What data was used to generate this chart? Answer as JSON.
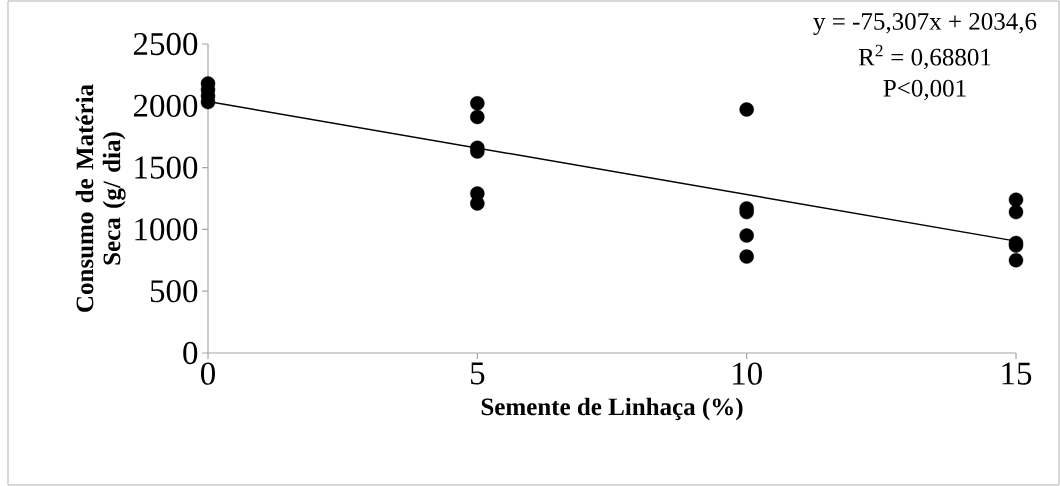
{
  "chart_data": {
    "type": "scatter",
    "xlabel": "Semente de Linhaça (%)",
    "ylabel": "Consumo de Matéria Seca (g/ dia)",
    "xlim": [
      0,
      15
    ],
    "xticks": [
      0,
      5,
      10,
      15
    ],
    "ylim": [
      0,
      2500
    ],
    "yticks": [
      0,
      500,
      1000,
      1500,
      2000,
      2500
    ],
    "grid": false,
    "series": [
      {
        "color": "#000000",
        "marker": "circle",
        "x": [
          0,
          0,
          0,
          0,
          5,
          5,
          5,
          5,
          5,
          5,
          10,
          10,
          10,
          10,
          10,
          15,
          15,
          15,
          15,
          15
        ],
        "values": [
          2180,
          2130,
          2080,
          2030,
          2020,
          1910,
          1660,
          1630,
          1290,
          1210,
          1970,
          1170,
          1140,
          950,
          780,
          1240,
          1140,
          890,
          870,
          750
        ]
      },
      {
        "type": "line",
        "color": "#000000",
        "marker": "none",
        "x": [
          0,
          15
        ],
        "values": [
          2035,
          905
        ]
      }
    ],
    "annotations": [
      "y = -75,307x + 2034,6",
      "R$^{2}$ = 0,68801",
      "P<0,001"
    ]
  }
}
